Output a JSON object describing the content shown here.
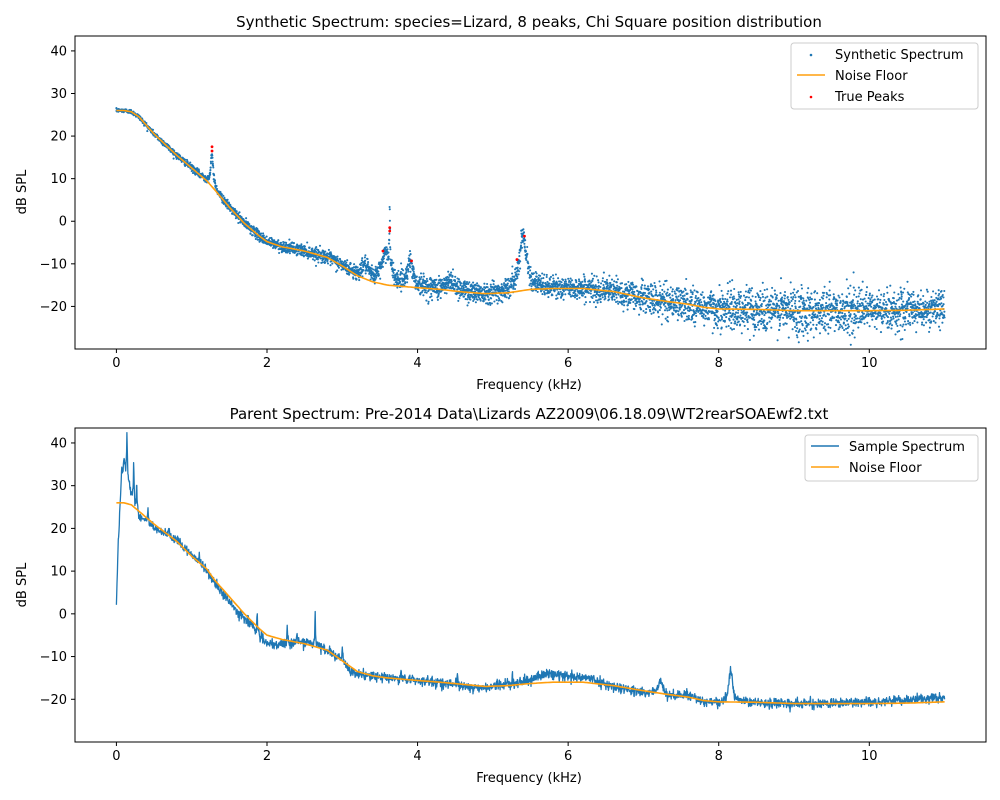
{
  "chart_data": [
    {
      "type": "scatter",
      "title": "Synthetic Spectrum: species=Lizard, 8 peaks, Chi Square position distribution",
      "xlabel": "Frequency (kHz)",
      "ylabel": "dB SPL",
      "xlim": [
        -0.55,
        11.55
      ],
      "ylim": [
        -30,
        43.5
      ],
      "xticks": [
        0,
        2,
        4,
        6,
        8,
        10
      ],
      "yticks": [
        -20,
        -10,
        0,
        10,
        20,
        30,
        40
      ],
      "legend_position": "upper right",
      "series": [
        {
          "name": "Synthetic Spectrum",
          "kind": "scatter",
          "color": "#1f77b4"
        },
        {
          "name": "Noise Floor",
          "kind": "line",
          "color": "#ff9f0e"
        },
        {
          "name": "True Peaks",
          "kind": "scatter",
          "color": "#ff0000"
        }
      ],
      "noise_floor": {
        "x": [
          0,
          0.1,
          0.2,
          0.3,
          0.5,
          0.8,
          1.0,
          1.2,
          1.3,
          1.5,
          1.7,
          1.9,
          2.0,
          2.2,
          2.5,
          2.8,
          3.0,
          3.2,
          3.4,
          3.6,
          3.8,
          4.0,
          4.3,
          4.6,
          4.9,
          5.2,
          5.5,
          5.8,
          6.2,
          6.6,
          7.0,
          7.3,
          7.6,
          7.8,
          8.0,
          8.5,
          9.0,
          9.5,
          10.0,
          10.5,
          11.0
        ],
        "y": [
          26,
          26,
          25.7,
          24.5,
          20.5,
          15.5,
          12.5,
          9.5,
          7.5,
          3.3,
          -0.5,
          -3.5,
          -4.8,
          -6.0,
          -7.0,
          -8.5,
          -10.5,
          -12.8,
          -14.2,
          -15.0,
          -15.3,
          -15.6,
          -16.0,
          -16.6,
          -17.0,
          -16.8,
          -16.0,
          -15.8,
          -15.8,
          -16.5,
          -18.0,
          -18.8,
          -19.5,
          -20.2,
          -20.6,
          -20.7,
          -21.0,
          -21.0,
          -21.0,
          -20.9,
          -20.6
        ]
      },
      "synthetic_peaks": [
        {
          "x": 1.27,
          "height": 7.5,
          "width": 0.02
        },
        {
          "x": 3.3,
          "height": 3.0,
          "width": 0.05
        },
        {
          "x": 3.58,
          "height": 7.5,
          "width": 0.07
        },
        {
          "x": 3.63,
          "height": 13.0,
          "width": 0.005
        },
        {
          "x": 3.9,
          "height": 6.0,
          "width": 0.04
        },
        {
          "x": 4.45,
          "height": 2.5,
          "width": 0.06
        },
        {
          "x": 5.4,
          "height": 13.0,
          "width": 0.06
        }
      ],
      "true_peaks": [
        {
          "x": 1.27,
          "y": 17.5
        },
        {
          "x": 1.27,
          "y": 16.5
        },
        {
          "x": 3.54,
          "y": -7.0
        },
        {
          "x": 3.63,
          "y": -1.5
        },
        {
          "x": 3.63,
          "y": -2.3
        },
        {
          "x": 3.92,
          "y": -9.3
        },
        {
          "x": 5.32,
          "y": -9.0
        },
        {
          "x": 5.42,
          "y": -3.5
        }
      ],
      "scatter_noise_amplitude": [
        {
          "x": 0,
          "amp": 0.2
        },
        {
          "x": 3.0,
          "amp": 0.8
        },
        {
          "x": 4.2,
          "amp": 1.3
        },
        {
          "x": 6.0,
          "amp": 1.2
        },
        {
          "x": 7.5,
          "amp": 2.0
        },
        {
          "x": 9.0,
          "amp": 2.8
        },
        {
          "x": 11.0,
          "amp": 2.0
        }
      ]
    },
    {
      "type": "line",
      "title": "Parent Spectrum: Pre-2014 Data\\Lizards AZ2009\\06.18.09\\WT2rearSOAEwf2.txt",
      "xlabel": "Frequency (kHz)",
      "ylabel": "dB SPL",
      "xlim": [
        -0.55,
        11.55
      ],
      "ylim": [
        -30,
        43.5
      ],
      "xticks": [
        0,
        2,
        4,
        6,
        8,
        10
      ],
      "yticks": [
        -20,
        -10,
        0,
        10,
        20,
        30,
        40
      ],
      "legend_position": "upper right",
      "series": [
        {
          "name": "Sample Spectrum",
          "kind": "line",
          "color": "#1f77b4"
        },
        {
          "name": "Noise Floor",
          "kind": "line",
          "color": "#ff9f0e"
        }
      ],
      "sample_base": {
        "x": [
          0,
          0.01,
          0.02,
          0.04,
          0.06,
          0.08,
          0.1,
          0.12,
          0.15,
          0.2,
          0.3,
          0.5,
          0.8,
          1.0,
          1.2,
          1.4,
          1.6,
          1.8,
          1.9,
          2.0,
          2.1,
          2.2,
          2.4,
          2.6,
          2.8,
          3.0,
          3.1,
          3.3,
          3.6,
          4.0,
          4.5,
          4.8,
          5.0,
          5.2,
          5.5,
          5.7,
          6.0,
          6.3,
          6.6,
          7.0,
          7.3,
          7.6,
          7.8,
          8.0,
          8.3,
          8.6,
          9.0,
          9.5,
          10.0,
          10.5,
          11.0
        ],
        "y": [
          2,
          8,
          15,
          22,
          28,
          32,
          33,
          33,
          31,
          28,
          23,
          20,
          17,
          14,
          10,
          5,
          0.5,
          -2.5,
          -5,
          -7,
          -7.5,
          -7,
          -6.5,
          -7,
          -8.5,
          -11,
          -13.5,
          -14.5,
          -15,
          -15.5,
          -16.5,
          -17.5,
          -17,
          -16.5,
          -15.5,
          -14,
          -14.5,
          -15.2,
          -17,
          -18.5,
          -19.5,
          -19,
          -20.5,
          -21,
          -20.7,
          -20.8,
          -21,
          -21,
          -20.6,
          -20.2,
          -19.7
        ]
      },
      "sample_peaks": [
        {
          "x": 0.07,
          "height": 4,
          "width": 0.008
        },
        {
          "x": 0.1,
          "height": 3.5,
          "width": 0.008
        },
        {
          "x": 0.14,
          "height": 11,
          "width": 0.006
        },
        {
          "x": 0.23,
          "height": 9,
          "width": 0.005
        },
        {
          "x": 0.27,
          "height": 6,
          "width": 0.005
        },
        {
          "x": 0.42,
          "height": 3.5,
          "width": 0.006
        },
        {
          "x": 0.7,
          "height": 2,
          "width": 0.008
        },
        {
          "x": 1.1,
          "height": 2,
          "width": 0.006
        },
        {
          "x": 1.87,
          "height": 4.5,
          "width": 0.004
        },
        {
          "x": 2.27,
          "height": 3.5,
          "width": 0.005
        },
        {
          "x": 2.4,
          "height": 2,
          "width": 0.005
        },
        {
          "x": 2.64,
          "height": 8.5,
          "width": 0.004
        },
        {
          "x": 3.0,
          "height": 3,
          "width": 0.006
        },
        {
          "x": 3.4,
          "height": 1.3,
          "width": 0.005
        },
        {
          "x": 3.78,
          "height": 2,
          "width": 0.004
        },
        {
          "x": 4.53,
          "height": 2.2,
          "width": 0.004
        },
        {
          "x": 5.26,
          "height": 3.5,
          "width": 0.004
        },
        {
          "x": 7.23,
          "height": 3.2,
          "width": 0.05
        },
        {
          "x": 8.16,
          "height": 7.5,
          "width": 0.03
        }
      ],
      "sample_noise_amplitude": 0.55,
      "noise_floor": {
        "x": [
          0,
          0.1,
          0.2,
          0.3,
          0.5,
          0.8,
          1.0,
          1.2,
          1.3,
          1.5,
          1.7,
          1.9,
          2.0,
          2.2,
          2.5,
          2.8,
          3.0,
          3.2,
          3.4,
          3.6,
          3.8,
          4.0,
          4.3,
          4.6,
          4.9,
          5.2,
          5.5,
          5.8,
          6.2,
          6.6,
          7.0,
          7.3,
          7.6,
          7.8,
          8.0,
          8.5,
          9.0,
          9.5,
          10.0,
          10.5,
          11.0
        ],
        "y": [
          26,
          26,
          25.5,
          24,
          21,
          17,
          13.5,
          10.5,
          8,
          4,
          0,
          -3.5,
          -5,
          -6,
          -7,
          -8.5,
          -11,
          -13.5,
          -14.5,
          -15,
          -15.3,
          -15.6,
          -16,
          -16.5,
          -17,
          -16.8,
          -16.3,
          -16,
          -16,
          -16.8,
          -18,
          -18.8,
          -19.5,
          -20.3,
          -20.6,
          -20.7,
          -21,
          -21,
          -21,
          -20.9,
          -20.6
        ]
      }
    }
  ]
}
